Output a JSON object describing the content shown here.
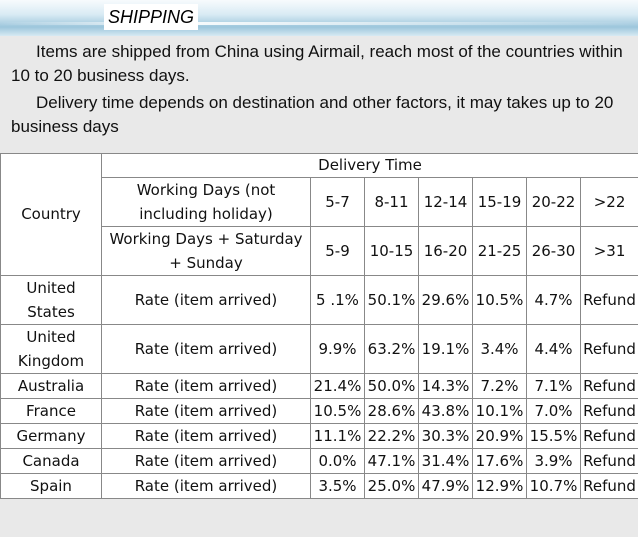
{
  "header": {
    "title": "SHIPPING"
  },
  "intro": {
    "line1": "Items are shipped from China using Airmail, reach most of the countries within 10 to 20 business days.",
    "line2": "Delivery time depends on destination and other factors, it may takes up to 20 business days"
  },
  "table": {
    "country_header": "Country",
    "delivery_header": "Delivery Time",
    "working_days_label": "Working Days (not including holiday)",
    "working_days_values": [
      "5-7",
      "8-11",
      "12-14",
      "15-19",
      "20-22",
      ">22"
    ],
    "weekend_label": "Working Days + Saturday + Sunday",
    "weekend_values": [
      "5-9",
      "10-15",
      "16-20",
      "21-25",
      "26-30",
      ">31"
    ],
    "rows": [
      {
        "country": "United States",
        "label": "Rate (item arrived)",
        "values": [
          "5 .1%",
          "50.1%",
          "29.6%",
          "10.5%",
          "4.7%",
          "Refund"
        ]
      },
      {
        "country": "United Kingdom",
        "label": "Rate (item arrived)",
        "values": [
          "9.9%",
          "63.2%",
          "19.1%",
          "3.4%",
          "4.4%",
          "Refund"
        ]
      },
      {
        "country": "Australia",
        "label": "Rate (item arrived)",
        "values": [
          "21.4%",
          "50.0%",
          "14.3%",
          "7.2%",
          "7.1%",
          "Refund"
        ]
      },
      {
        "country": "France",
        "label": "Rate (item arrived)",
        "values": [
          "10.5%",
          "28.6%",
          "43.8%",
          "10.1%",
          "7.0%",
          "Refund"
        ]
      },
      {
        "country": "Germany",
        "label": "Rate (item arrived)",
        "values": [
          "11.1%",
          "22.2%",
          "30.3%",
          "20.9%",
          "15.5%",
          "Refund"
        ]
      },
      {
        "country": "Canada",
        "label": "Rate (item arrived)",
        "values": [
          "0.0%",
          "47.1%",
          "31.4%",
          "17.6%",
          "3.9%",
          "Refund"
        ]
      },
      {
        "country": "Spain",
        "label": "Rate (item arrived)",
        "values": [
          "3.5%",
          "25.0%",
          "47.9%",
          "12.9%",
          "10.7%",
          "Refund"
        ]
      }
    ]
  }
}
